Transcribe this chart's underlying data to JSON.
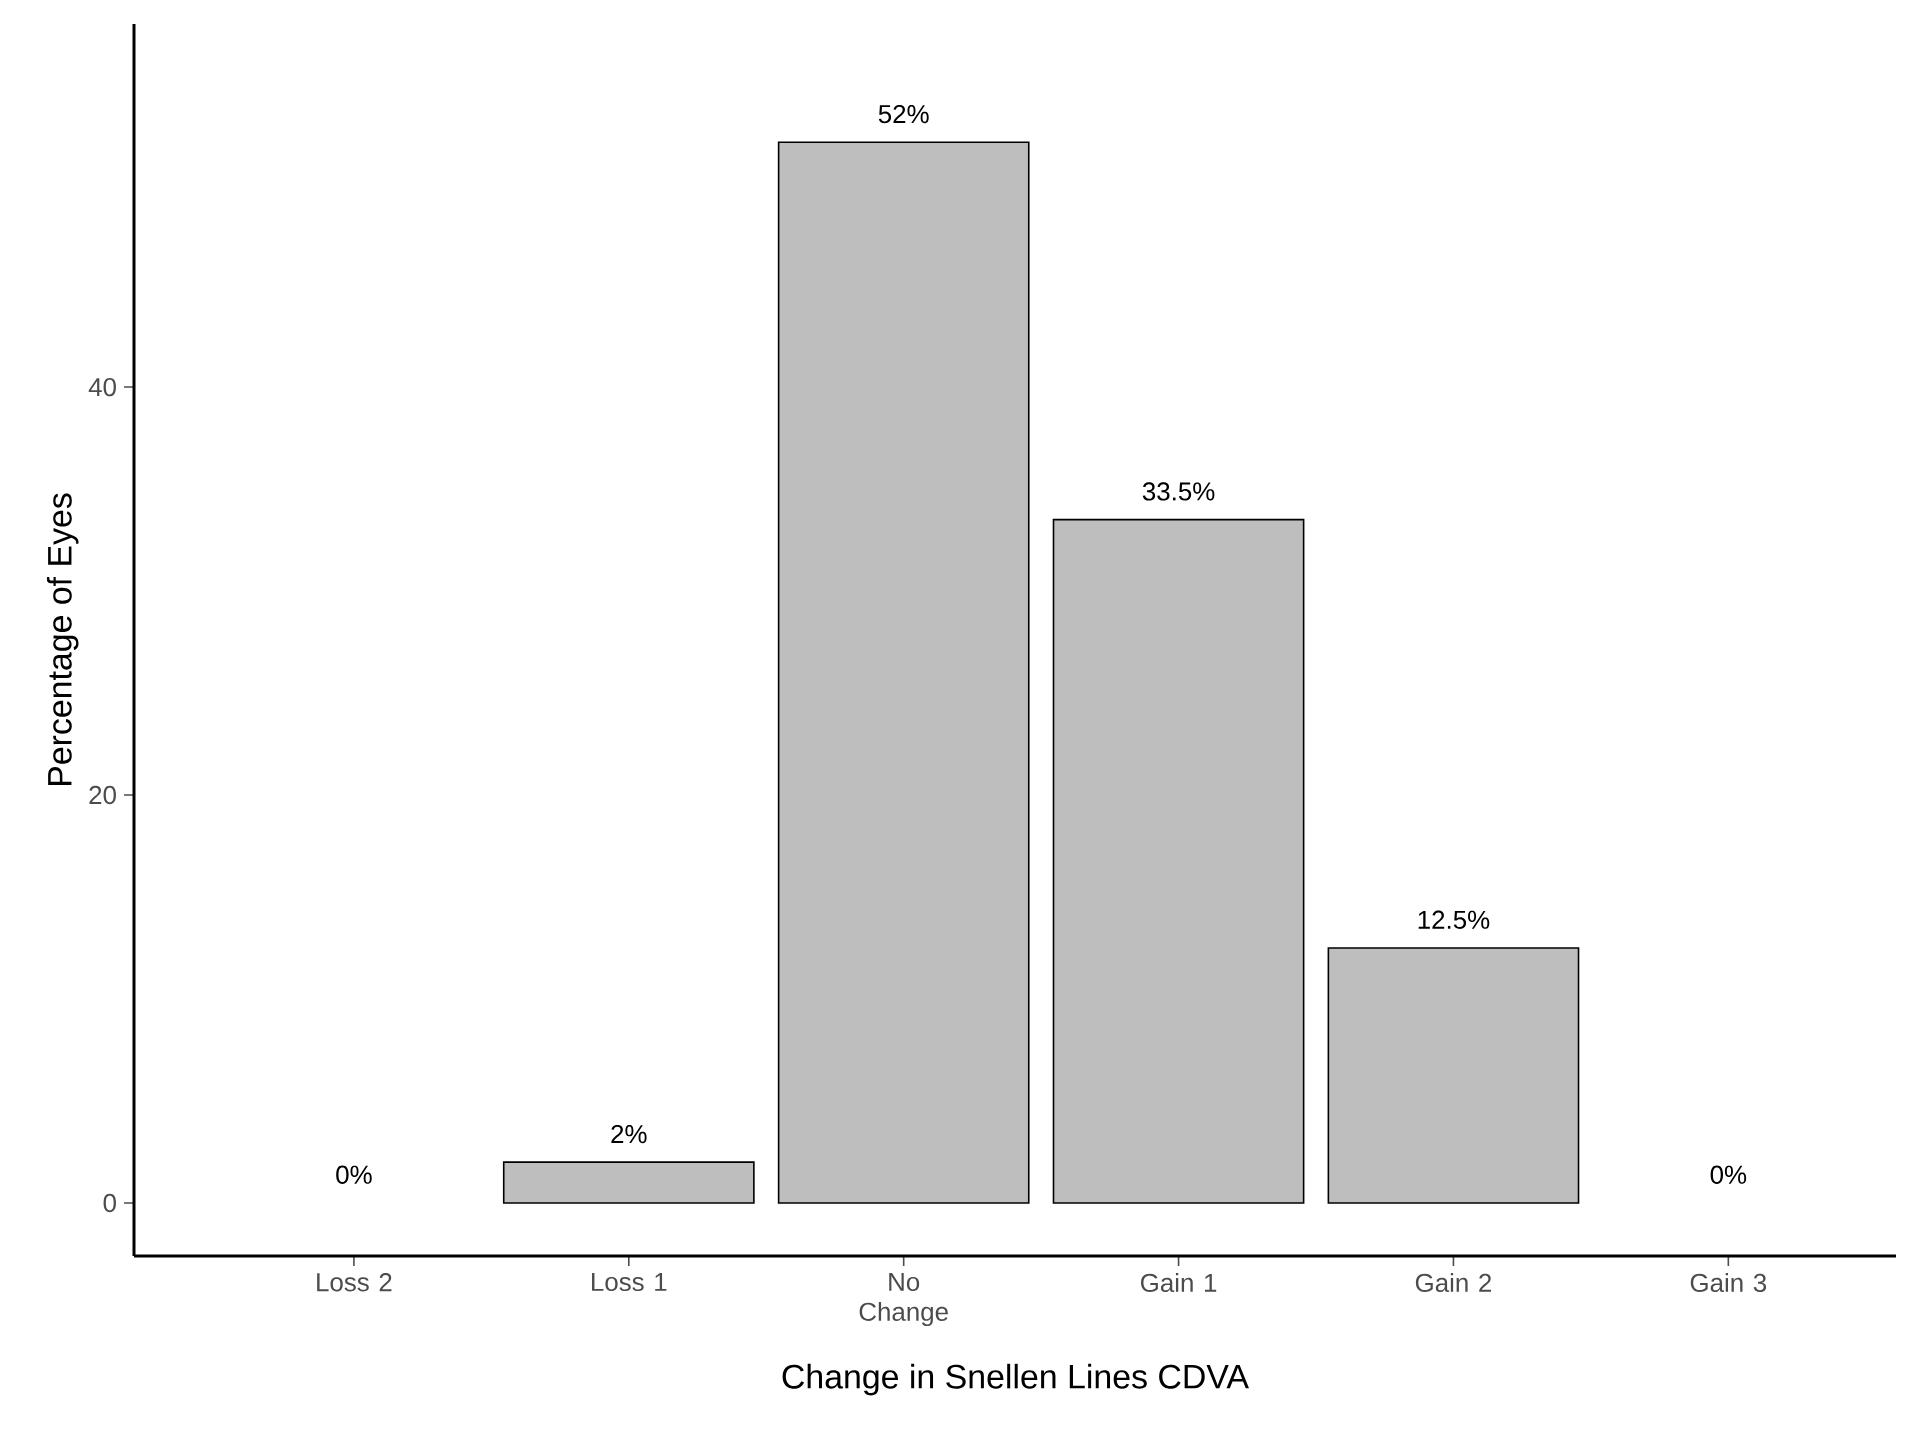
{
  "chart_data": {
    "type": "bar",
    "xlabel": "Change in Snellen Lines CDVA",
    "ylabel": "Percentage of Eyes",
    "categories": [
      "Loss 2",
      "Loss 1",
      "No Change",
      "Gain 1",
      "Gain 2",
      "Gain 3"
    ],
    "values": [
      0,
      2,
      52,
      33.5,
      12.5,
      0
    ],
    "value_labels": [
      "0%",
      "2%",
      "52%",
      "33.5%",
      "12.5%",
      "0%"
    ],
    "color": "#bebebe",
    "ylim": [
      -2.6,
      57.8
    ],
    "yticks": [
      0,
      20,
      40
    ],
    "grid": false
  }
}
